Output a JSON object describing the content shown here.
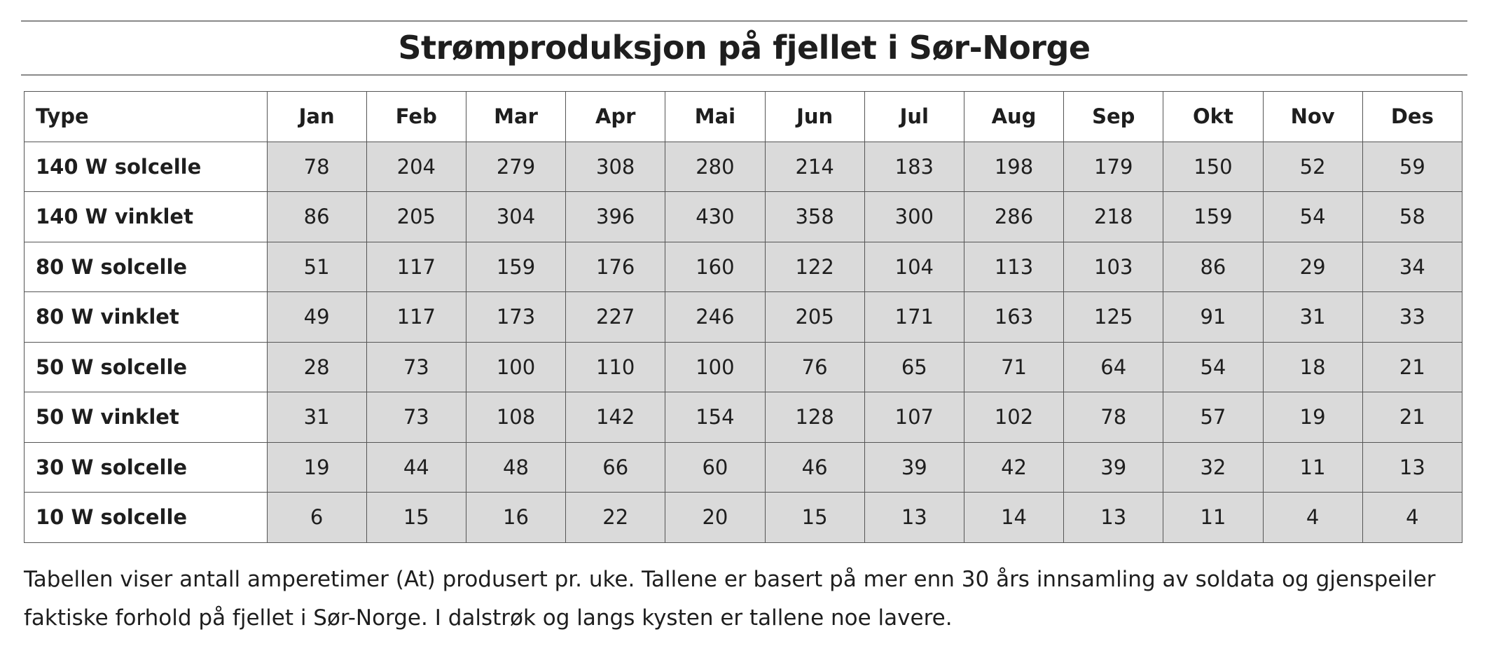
{
  "title": "Strømproduksjon på fjellet i Sør-Norge",
  "table": {
    "headers": [
      "Type",
      "Jan",
      "Feb",
      "Mar",
      "Apr",
      "Mai",
      "Jun",
      "Jul",
      "Aug",
      "Sep",
      "Okt",
      "Nov",
      "Des"
    ],
    "rows": [
      {
        "label": "140 W solcelle",
        "values": [
          "78",
          "204",
          "279",
          "308",
          "280",
          "214",
          "183",
          "198",
          "179",
          "150",
          "52",
          "59"
        ]
      },
      {
        "label": "140 W vinklet",
        "values": [
          "86",
          "205",
          "304",
          "396",
          "430",
          "358",
          "300",
          "286",
          "218",
          "159",
          "54",
          "58"
        ]
      },
      {
        "label": "80 W solcelle",
        "values": [
          "51",
          "117",
          "159",
          "176",
          "160",
          "122",
          "104",
          "113",
          "103",
          "86",
          "29",
          "34"
        ]
      },
      {
        "label": "80 W vinklet",
        "values": [
          "49",
          "117",
          "173",
          "227",
          "246",
          "205",
          "171",
          "163",
          "125",
          "91",
          "31",
          "33"
        ]
      },
      {
        "label": "50 W solcelle",
        "values": [
          "28",
          "73",
          "100",
          "110",
          "100",
          "76",
          "65",
          "71",
          "64",
          "54",
          "18",
          "21"
        ]
      },
      {
        "label": "50 W vinklet",
        "values": [
          "31",
          "73",
          "108",
          "142",
          "154",
          "128",
          "107",
          "102",
          "78",
          "57",
          "19",
          "21"
        ]
      },
      {
        "label": "30 W solcelle",
        "values": [
          "19",
          "44",
          "48",
          "66",
          "60",
          "46",
          "39",
          "42",
          "39",
          "32",
          "11",
          "13"
        ]
      },
      {
        "label": "10 W solcelle",
        "values": [
          "6",
          "15",
          "16",
          "22",
          "20",
          "15",
          "13",
          "14",
          "13",
          "11",
          "4",
          "4"
        ]
      }
    ]
  },
  "note": {
    "line1": "Tabellen viser antall amperetimer (At) produsert pr. uke. Tallene er basert på mer enn 30 års innsamling av soldata og gjenspeiler",
    "line2": "faktiske forhold på fjellet i Sør-Norge. I dalstrøk og langs kysten er tallene noe lavere."
  },
  "colors": {
    "cell_fill": "#dadada",
    "border": "#555555",
    "text": "#1e1e1e"
  }
}
